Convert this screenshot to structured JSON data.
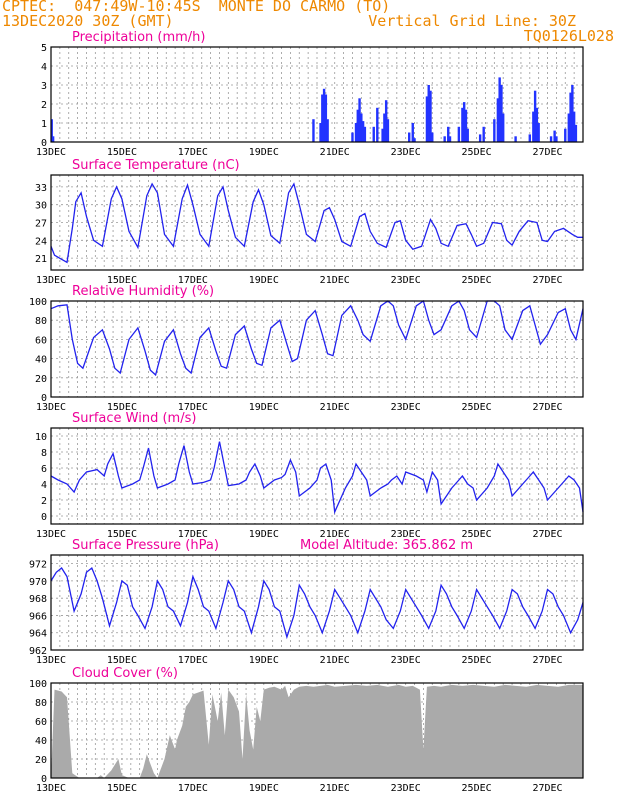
{
  "header": {
    "line1": "CPTEC:  047:49W-10:45S  MONTE DO CARMO (TO)",
    "line2_left": "13DEC2020 30Z (GMT)",
    "line2_right": "Vertical Grid Line: 30Z",
    "line3_right": "TQ0126L028"
  },
  "colors": {
    "title": "#ee0099",
    "header": "#ee8800",
    "line": "#2222ee",
    "bar": "#2233ff",
    "cloud": "#aaaaaa"
  },
  "chart_data": [
    {
      "type": "bar",
      "title": "Precipitation (mm/h)",
      "xlim": [
        13.0,
        28.0
      ],
      "ylim": [
        0,
        5
      ],
      "yticks": [
        0,
        1,
        2,
        3,
        4,
        5
      ],
      "xticks": [
        "13DEC",
        "15DEC",
        "17DEC",
        "19DEC",
        "21DEC",
        "23DEC",
        "25DEC",
        "27DEC"
      ],
      "x": [
        13.02,
        13.06,
        20.4,
        20.6,
        20.65,
        20.7,
        20.75,
        20.8,
        21.5,
        21.6,
        21.65,
        21.7,
        21.75,
        21.8,
        21.85,
        22.1,
        22.2,
        22.35,
        22.4,
        22.45,
        22.5,
        23.1,
        23.2,
        23.25,
        23.6,
        23.65,
        23.7,
        23.75,
        24.1,
        24.2,
        24.25,
        24.5,
        24.6,
        24.65,
        24.7,
        24.75,
        25.1,
        25.2,
        25.5,
        25.6,
        25.65,
        25.7,
        25.75,
        26.1,
        26.5,
        26.6,
        26.65,
        26.7,
        26.75,
        27.1,
        27.2,
        27.25,
        27.5,
        27.6,
        27.65,
        27.7,
        27.75,
        27.8
      ],
      "values": [
        1.2,
        0.3,
        1.2,
        1.0,
        2.5,
        2.8,
        2.5,
        1.2,
        0.5,
        1.0,
        1.7,
        2.3,
        1.5,
        1.1,
        0.8,
        0.8,
        1.8,
        0.7,
        1.5,
        2.2,
        1.2,
        0.5,
        1.0,
        0.2,
        2.4,
        3.0,
        2.7,
        0.5,
        0.3,
        0.8,
        0.3,
        0.8,
        1.8,
        2.1,
        1.7,
        0.7,
        0.4,
        0.8,
        1.2,
        2.3,
        3.4,
        3.0,
        1.5,
        0.3,
        0.4,
        1.6,
        2.7,
        1.8,
        1.0,
        0.3,
        0.6,
        0.3,
        0.7,
        1.5,
        2.6,
        3.0,
        1.6,
        0.9
      ]
    },
    {
      "type": "line",
      "title": "Surface Temperature (nC)",
      "xlim": [
        13.0,
        28.0
      ],
      "ylim": [
        19,
        35
      ],
      "yticks": [
        21,
        24,
        27,
        30,
        33
      ],
      "xticks": [
        "13DEC",
        "15DEC",
        "17DEC",
        "19DEC",
        "21DEC",
        "23DEC",
        "25DEC",
        "27DEC"
      ],
      "x": [
        13.0,
        13.1,
        13.3,
        13.45,
        13.6,
        13.7,
        13.85,
        14.0,
        14.2,
        14.45,
        14.7,
        14.85,
        15.0,
        15.2,
        15.45,
        15.7,
        15.85,
        16.0,
        16.2,
        16.45,
        16.7,
        16.85,
        17.0,
        17.2,
        17.45,
        17.7,
        17.85,
        18.0,
        18.2,
        18.45,
        18.7,
        18.85,
        19.0,
        19.2,
        19.45,
        19.7,
        19.85,
        20.0,
        20.2,
        20.45,
        20.7,
        20.85,
        21.0,
        21.2,
        21.45,
        21.7,
        21.85,
        22.0,
        22.2,
        22.45,
        22.7,
        22.85,
        23.0,
        23.2,
        23.45,
        23.7,
        23.85,
        24.0,
        24.2,
        24.45,
        24.7,
        24.85,
        25.0,
        25.2,
        25.45,
        25.7,
        25.85,
        26.0,
        26.2,
        26.45,
        26.7,
        26.85,
        27.0,
        27.2,
        27.45,
        27.7,
        27.85,
        28.0
      ],
      "series": [
        {
          "values": [
            23.0,
            21.5,
            20.8,
            20.3,
            26.0,
            30.5,
            32.0,
            28.0,
            24.0,
            23.0,
            31.0,
            33.0,
            31.0,
            25.5,
            22.8,
            31.5,
            33.5,
            32.0,
            25.0,
            23.0,
            31.0,
            33.3,
            30.0,
            25.0,
            23.0,
            31.5,
            33.0,
            29.0,
            24.5,
            23.0,
            30.5,
            32.5,
            30.0,
            24.8,
            23.5,
            32.0,
            33.5,
            30.0,
            25.0,
            23.8,
            29.0,
            29.5,
            27.5,
            23.8,
            23.0,
            28.0,
            28.5,
            25.5,
            23.5,
            22.8,
            27.0,
            27.3,
            24.0,
            22.5,
            23.0,
            27.5,
            26.0,
            23.5,
            23.0,
            26.5,
            26.8,
            25.0,
            23.0,
            23.5,
            27.0,
            26.8,
            24.0,
            23.2,
            25.5,
            27.3,
            27.0,
            24.0,
            23.8,
            25.5,
            26.0,
            25.0,
            24.5,
            24.5
          ]
        }
      ]
    },
    {
      "type": "line",
      "title": "Relative Humidity (%)",
      "xlim": [
        13.0,
        28.0
      ],
      "ylim": [
        0,
        100
      ],
      "yticks": [
        0,
        20,
        40,
        60,
        80,
        100
      ],
      "xticks": [
        "13DEC",
        "15DEC",
        "17DEC",
        "19DEC",
        "21DEC",
        "23DEC",
        "25DEC",
        "27DEC"
      ],
      "x": [
        13.0,
        13.2,
        13.45,
        13.6,
        13.75,
        13.9,
        14.2,
        14.45,
        14.65,
        14.8,
        14.95,
        15.2,
        15.45,
        15.65,
        15.8,
        15.95,
        16.2,
        16.45,
        16.65,
        16.8,
        16.95,
        17.2,
        17.45,
        17.65,
        17.8,
        17.95,
        18.2,
        18.45,
        18.65,
        18.8,
        18.95,
        19.2,
        19.45,
        19.65,
        19.8,
        19.95,
        20.2,
        20.45,
        20.65,
        20.8,
        20.95,
        21.2,
        21.45,
        21.65,
        21.8,
        22.0,
        22.3,
        22.5,
        22.65,
        22.8,
        23.0,
        23.3,
        23.5,
        23.65,
        23.8,
        24.0,
        24.3,
        24.5,
        24.65,
        24.8,
        25.0,
        25.3,
        25.5,
        25.65,
        25.8,
        26.0,
        26.3,
        26.5,
        26.65,
        26.8,
        27.0,
        27.3,
        27.5,
        27.65,
        27.8,
        28.0
      ],
      "series": [
        {
          "values": [
            92,
            95,
            96,
            60,
            35,
            30,
            62,
            70,
            50,
            30,
            25,
            60,
            72,
            48,
            28,
            23,
            58,
            70,
            45,
            30,
            25,
            62,
            72,
            48,
            32,
            30,
            65,
            74,
            50,
            35,
            33,
            72,
            80,
            55,
            37,
            40,
            80,
            90,
            65,
            45,
            43,
            85,
            95,
            80,
            65,
            58,
            95,
            100,
            95,
            75,
            60,
            95,
            100,
            80,
            65,
            70,
            95,
            100,
            90,
            70,
            62,
            100,
            100,
            95,
            70,
            60,
            90,
            95,
            75,
            55,
            65,
            88,
            92,
            70,
            60,
            92
          ]
        }
      ]
    },
    {
      "type": "line",
      "title": "Surface Wind (m/s)",
      "xlim": [
        13.0,
        28.0
      ],
      "ylim": [
        -1,
        11
      ],
      "yticks": [
        0,
        2,
        4,
        6,
        8,
        10
      ],
      "xticks": [
        "13DEC",
        "15DEC",
        "17DEC",
        "19DEC",
        "21DEC",
        "23DEC",
        "25DEC",
        "27DEC"
      ],
      "x": [
        13.0,
        13.2,
        13.45,
        13.65,
        13.8,
        14.0,
        14.3,
        14.5,
        14.6,
        14.75,
        14.9,
        15.0,
        15.3,
        15.5,
        15.6,
        15.75,
        15.9,
        16.0,
        16.3,
        16.5,
        16.6,
        16.75,
        16.9,
        17.0,
        17.3,
        17.5,
        17.6,
        17.75,
        17.9,
        18.0,
        18.3,
        18.5,
        18.6,
        18.75,
        18.9,
        19.0,
        19.3,
        19.5,
        19.6,
        19.75,
        19.9,
        20.0,
        20.3,
        20.5,
        20.6,
        20.75,
        20.9,
        21.0,
        21.3,
        21.5,
        21.6,
        21.75,
        21.9,
        22.0,
        22.3,
        22.5,
        22.6,
        22.75,
        22.9,
        23.0,
        23.3,
        23.5,
        23.6,
        23.75,
        23.9,
        24.0,
        24.3,
        24.5,
        24.6,
        24.75,
        24.9,
        25.0,
        25.3,
        25.5,
        25.6,
        25.75,
        25.9,
        26.0,
        26.3,
        26.5,
        26.6,
        26.75,
        26.9,
        27.0,
        27.3,
        27.5,
        27.6,
        27.75,
        27.9,
        28.0
      ],
      "series": [
        {
          "values": [
            5.0,
            4.5,
            4.0,
            3.0,
            4.5,
            5.5,
            5.8,
            5.0,
            6.5,
            7.8,
            5.0,
            3.5,
            4.0,
            4.5,
            6.0,
            8.5,
            5.0,
            3.5,
            4.0,
            4.5,
            6.5,
            8.8,
            5.5,
            4.0,
            4.2,
            4.5,
            6.0,
            9.3,
            6.0,
            3.8,
            4.0,
            4.5,
            5.5,
            6.5,
            5.0,
            3.5,
            4.5,
            4.8,
            5.2,
            7.0,
            5.5,
            2.5,
            3.5,
            4.5,
            6.0,
            6.5,
            4.5,
            0.5,
            3.5,
            5.0,
            6.5,
            5.5,
            4.5,
            2.5,
            3.5,
            4.0,
            4.5,
            5.0,
            4.0,
            5.5,
            5.0,
            4.5,
            3.0,
            5.5,
            4.5,
            1.5,
            3.5,
            4.5,
            5.0,
            4.0,
            3.5,
            2.0,
            3.5,
            5.0,
            6.5,
            5.5,
            4.5,
            2.5,
            4.0,
            5.0,
            5.5,
            4.5,
            3.5,
            2.0,
            3.5,
            4.5,
            5.0,
            4.5,
            3.5,
            0.5
          ]
        }
      ]
    },
    {
      "type": "line",
      "title": "Surface Pressure (hPa)",
      "annotation": "Model Altitude: 365.862 m",
      "xlim": [
        13.0,
        28.0
      ],
      "ylim": [
        962,
        973
      ],
      "yticks": [
        962,
        964,
        966,
        968,
        970,
        972
      ],
      "xticks": [
        "13DEC",
        "15DEC",
        "17DEC",
        "19DEC",
        "21DEC",
        "23DEC",
        "25DEC",
        "27DEC"
      ],
      "x": [
        13.0,
        13.15,
        13.3,
        13.45,
        13.65,
        13.85,
        14.0,
        14.15,
        14.3,
        14.45,
        14.65,
        14.85,
        15.0,
        15.15,
        15.3,
        15.45,
        15.65,
        15.85,
        16.0,
        16.15,
        16.3,
        16.45,
        16.65,
        16.85,
        17.0,
        17.15,
        17.3,
        17.45,
        17.65,
        17.85,
        18.0,
        18.15,
        18.3,
        18.45,
        18.65,
        18.85,
        19.0,
        19.15,
        19.3,
        19.45,
        19.65,
        19.85,
        20.0,
        20.15,
        20.3,
        20.45,
        20.65,
        20.85,
        21.0,
        21.15,
        21.3,
        21.45,
        21.65,
        21.85,
        22.0,
        22.15,
        22.3,
        22.45,
        22.65,
        22.85,
        23.0,
        23.15,
        23.3,
        23.45,
        23.65,
        23.85,
        24.0,
        24.15,
        24.3,
        24.45,
        24.65,
        24.85,
        25.0,
        25.15,
        25.3,
        25.45,
        25.65,
        25.85,
        26.0,
        26.15,
        26.3,
        26.45,
        26.65,
        26.85,
        27.0,
        27.15,
        27.3,
        27.45,
        27.65,
        27.85,
        28.0
      ],
      "series": [
        {
          "values": [
            970.0,
            971.0,
            971.5,
            970.5,
            966.5,
            968.5,
            971.0,
            971.5,
            970.0,
            968.0,
            964.8,
            967.5,
            970.0,
            969.5,
            967.0,
            966.0,
            964.5,
            967.0,
            970.0,
            969.0,
            967.0,
            966.5,
            964.8,
            967.5,
            970.5,
            969.0,
            967.0,
            966.5,
            964.5,
            967.5,
            970.0,
            969.0,
            967.0,
            966.5,
            964.0,
            967.0,
            970.0,
            969.0,
            967.0,
            966.5,
            963.5,
            966.0,
            969.5,
            968.5,
            967.0,
            966.0,
            964.0,
            966.5,
            969.0,
            968.0,
            967.0,
            966.0,
            964.0,
            966.5,
            969.0,
            968.0,
            967.0,
            965.5,
            964.5,
            966.5,
            969.0,
            968.0,
            967.0,
            966.0,
            964.5,
            966.5,
            969.5,
            968.5,
            967.0,
            966.0,
            964.5,
            966.5,
            969.0,
            968.0,
            967.0,
            966.0,
            964.5,
            966.5,
            969.0,
            968.5,
            967.0,
            966.0,
            964.5,
            966.5,
            969.0,
            968.5,
            967.0,
            966.0,
            964.0,
            965.5,
            967.5
          ]
        }
      ]
    },
    {
      "type": "area",
      "title": "Cloud Cover (%)",
      "xlim": [
        13.0,
        28.0
      ],
      "ylim": [
        0,
        100
      ],
      "yticks": [
        0,
        20,
        40,
        60,
        80,
        100
      ],
      "xticks": [
        "13DEC",
        "15DEC",
        "17DEC",
        "19DEC",
        "21DEC",
        "23DEC",
        "25DEC",
        "27DEC"
      ],
      "x": [
        13.0,
        13.1,
        13.3,
        13.45,
        13.6,
        13.8,
        14.0,
        14.1,
        14.3,
        14.4,
        14.5,
        14.7,
        14.9,
        15.0,
        15.2,
        15.5,
        15.6,
        15.7,
        15.9,
        16.0,
        16.2,
        16.35,
        16.5,
        16.55,
        16.7,
        16.8,
        16.9,
        17.0,
        17.15,
        17.3,
        17.45,
        17.55,
        17.7,
        17.8,
        17.9,
        18.0,
        18.15,
        18.3,
        18.4,
        18.5,
        18.6,
        18.7,
        18.8,
        18.9,
        19.0,
        19.15,
        19.3,
        19.5,
        19.6,
        19.7,
        19.85,
        20.0,
        20.2,
        20.4,
        20.6,
        20.8,
        21.0,
        21.3,
        21.6,
        21.9,
        22.2,
        22.5,
        22.8,
        23.0,
        23.2,
        23.4,
        23.5,
        23.6,
        23.8,
        24.0,
        24.3,
        24.6,
        24.9,
        25.2,
        25.5,
        25.8,
        26.1,
        26.4,
        26.7,
        27.0,
        27.3,
        27.6,
        28.0
      ],
      "values": [
        0,
        93,
        91,
        85,
        5,
        0,
        0,
        0,
        0,
        3,
        0,
        8,
        20,
        3,
        0,
        0,
        10,
        25,
        5,
        0,
        20,
        45,
        30,
        40,
        55,
        75,
        80,
        88,
        90,
        92,
        35,
        88,
        60,
        90,
        45,
        93,
        85,
        70,
        20,
        88,
        50,
        30,
        75,
        60,
        93,
        95,
        96,
        93,
        97,
        85,
        93,
        96,
        97,
        96,
        97,
        98,
        96,
        97,
        98,
        97,
        98,
        96,
        98,
        96,
        97,
        93,
        30,
        96,
        97,
        96,
        98,
        97,
        98,
        97,
        96,
        98,
        97,
        96,
        98,
        97,
        96,
        98,
        98
      ]
    }
  ]
}
